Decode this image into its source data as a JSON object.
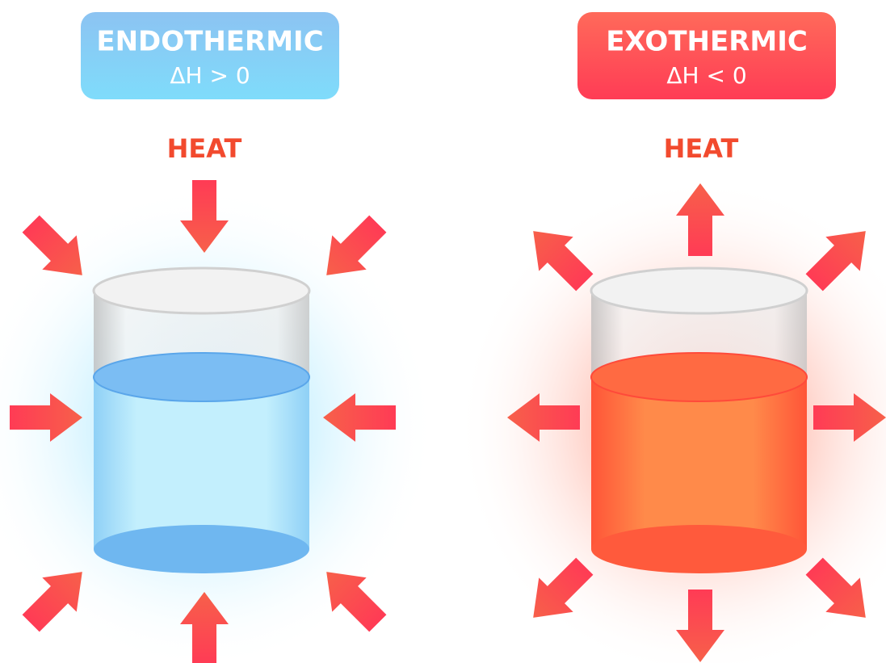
{
  "panels": [
    {
      "title": "ENDOTHERMIC",
      "subtitle": "ΔH > 0",
      "heat_label": "HEAT"
    },
    {
      "title": "EXOTHERMIC",
      "subtitle": "ΔH < 0",
      "heat_label": "HEAT"
    }
  ]
}
